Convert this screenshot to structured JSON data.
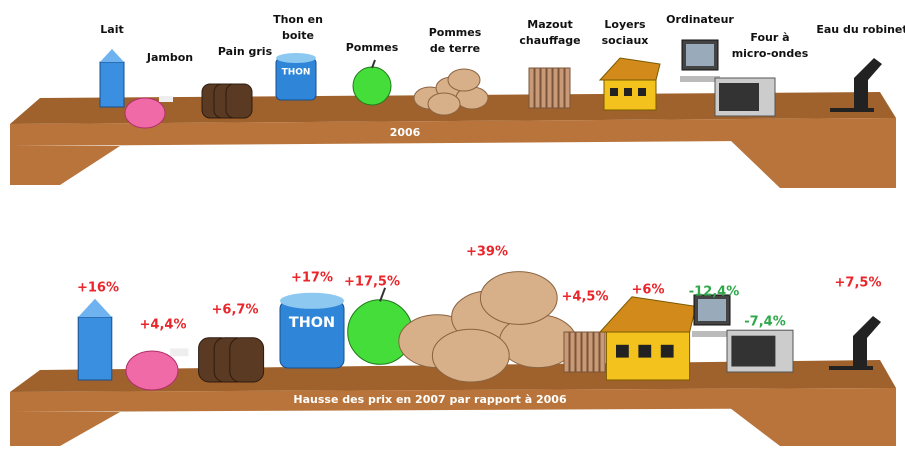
{
  "top_shelf": {
    "shelf_label": "2006",
    "items": [
      {
        "label": [
          "Lait"
        ]
      },
      {
        "label": [
          "Jambon"
        ]
      },
      {
        "label": [
          "Pain gris"
        ]
      },
      {
        "label": [
          "Thon en",
          "boite"
        ],
        "can_text": "THON"
      },
      {
        "label": [
          "Pommes"
        ]
      },
      {
        "label": [
          "Pommes",
          "de terre"
        ]
      },
      {
        "label": [
          "Mazout",
          "chauffage"
        ]
      },
      {
        "label": [
          "Loyers",
          "sociaux"
        ]
      },
      {
        "label": [
          "Ordinateur"
        ]
      },
      {
        "label": [
          "Four à",
          "micro-ondes"
        ]
      },
      {
        "label": [
          "Eau du robinet"
        ]
      }
    ]
  },
  "bottom_shelf": {
    "shelf_label": "Hausse des prix en 2007 par rapport à 2006",
    "items": [
      {
        "change": "+16%",
        "color": "#e8262b"
      },
      {
        "change": "+4,4%",
        "color": "#e8262b"
      },
      {
        "change": "+6,7%",
        "color": "#e8262b"
      },
      {
        "change": "+17%",
        "color": "#e8262b",
        "can_text": "THON"
      },
      {
        "change": "+17,5%",
        "color": "#e8262b"
      },
      {
        "change": "+39%",
        "color": "#e8262b"
      },
      {
        "change": "+4,5%",
        "color": "#e8262b"
      },
      {
        "change": "+6%",
        "color": "#e8262b"
      },
      {
        "change": "-12,4%",
        "color": "#2ea84a"
      },
      {
        "change": "-7,4%",
        "color": "#2ea84a"
      },
      {
        "change": "+7,5%",
        "color": "#e8262b"
      }
    ]
  }
}
